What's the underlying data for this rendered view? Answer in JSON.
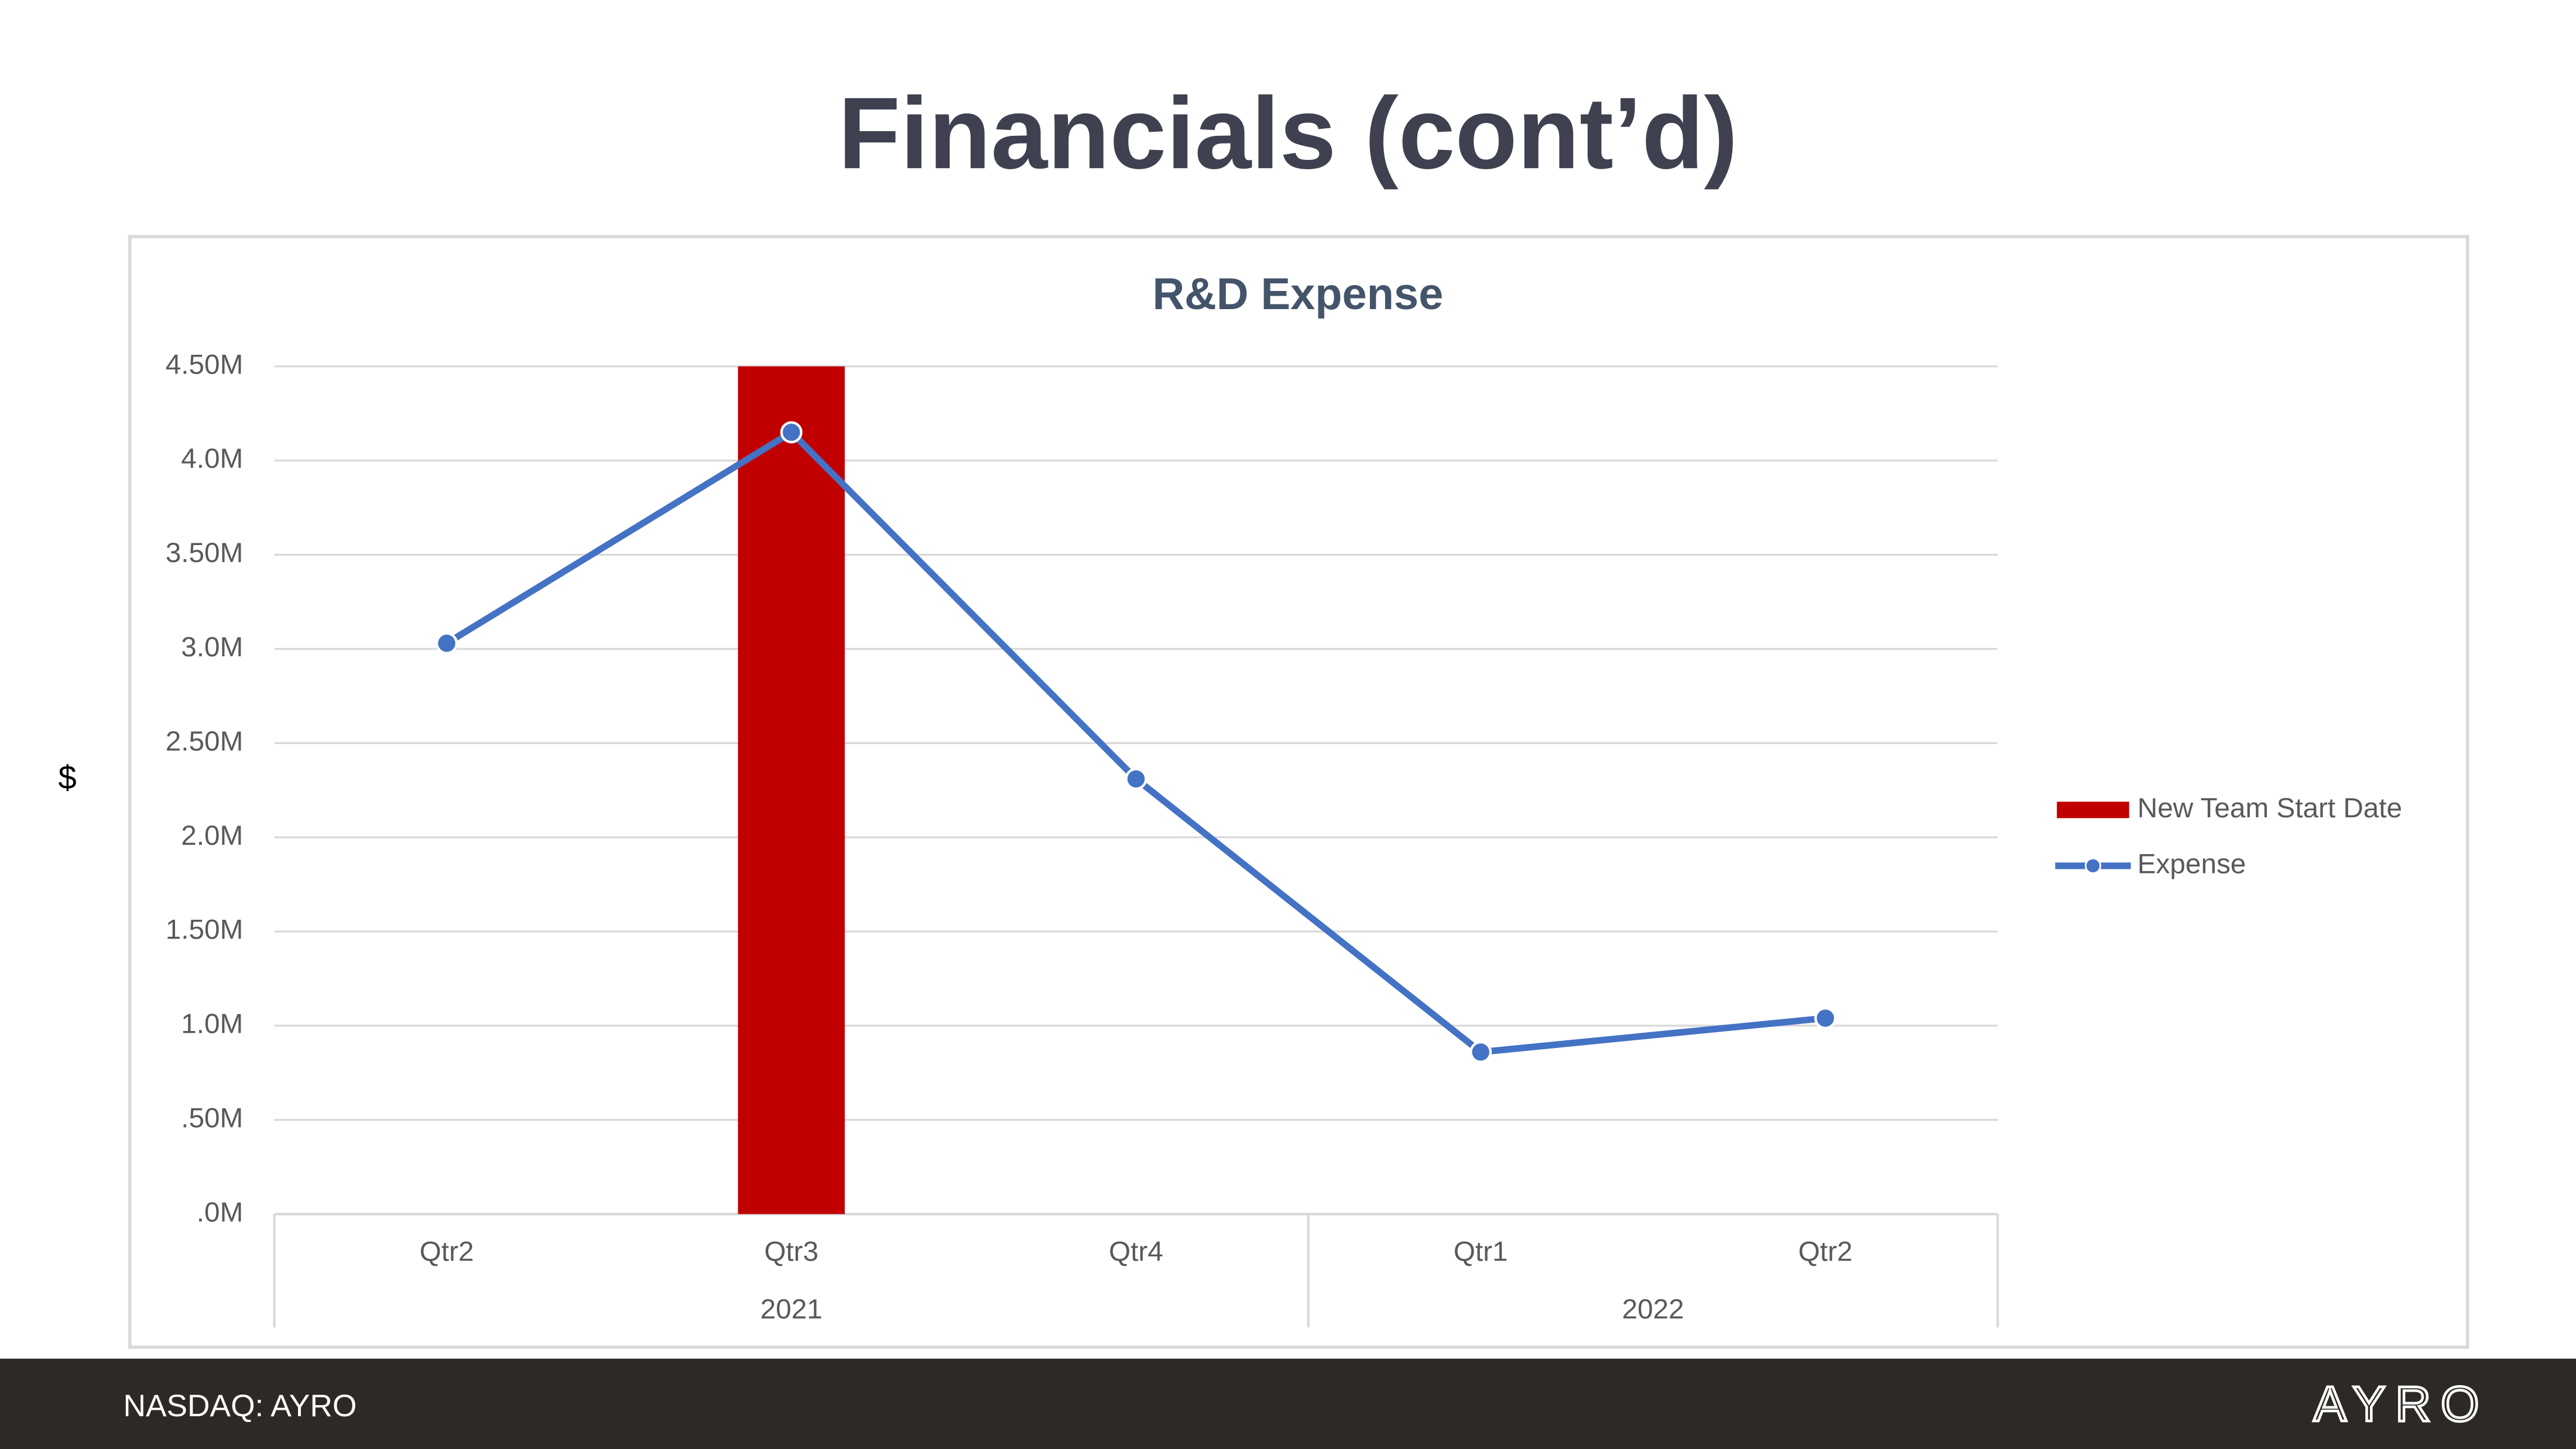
{
  "title": "Financials (cont’d)",
  "footer": {
    "ticker": "NASDAQ: AYRO",
    "logo": "AYRO"
  },
  "chart_data": {
    "type": "combo",
    "title": "R&D Expense",
    "y_label": "$",
    "categories": [
      "Qtr2",
      "Qtr3",
      "Qtr4",
      "Qtr1",
      "Qtr2"
    ],
    "category_groups": [
      {
        "label": "2021",
        "count": 3
      },
      {
        "label": "2022",
        "count": 2
      }
    ],
    "series": [
      {
        "name": "New Team Start Date",
        "type": "bar",
        "color": "#c00000",
        "values": [
          null,
          4.5,
          null,
          null,
          null
        ]
      },
      {
        "name": "Expense",
        "type": "line",
        "color": "#4472c4",
        "values": [
          3.03,
          4.15,
          2.31,
          0.86,
          1.04
        ]
      }
    ],
    "ylim": [
      0,
      4.5
    ],
    "yticks": [
      {
        "value": 0,
        "label": ".0M"
      },
      {
        "value": 0.5,
        "label": ".50M"
      },
      {
        "value": 1,
        "label": "1.0M"
      },
      {
        "value": 1.5,
        "label": "1.50M"
      },
      {
        "value": 2,
        "label": "2.0M"
      },
      {
        "value": 2.5,
        "label": "2.50M"
      },
      {
        "value": 3,
        "label": "3.0M"
      },
      {
        "value": 3.5,
        "label": "3.50M"
      },
      {
        "value": 4,
        "label": "4.0M"
      },
      {
        "value": 4.5,
        "label": "4.50M"
      }
    ],
    "grid": true,
    "legend": "right"
  }
}
